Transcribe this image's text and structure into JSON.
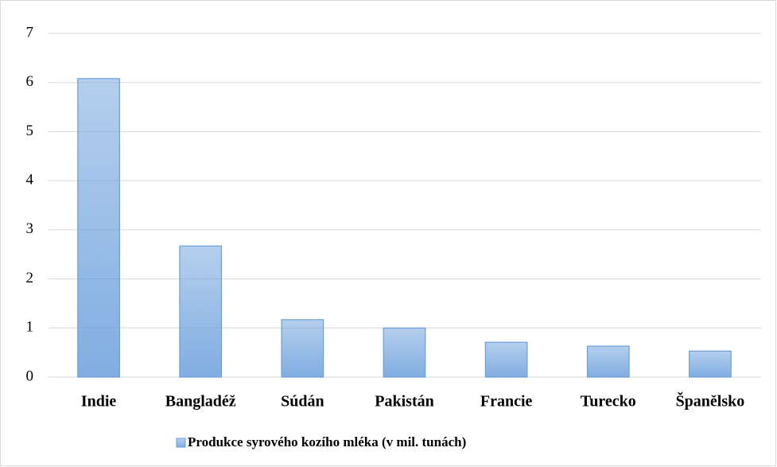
{
  "chart_data": {
    "type": "bar",
    "categories": [
      "Indie",
      "Bangladéž",
      "Súdán",
      "Pakistán",
      "Francie",
      "Turecko",
      "Španělsko"
    ],
    "series": [
      {
        "name": "Produkce syrového kozího mléka (v mil. tunách)",
        "color": "#6a9fdc",
        "values": [
          6.08,
          2.67,
          1.17,
          1.0,
          0.71,
          0.63,
          0.53
        ]
      }
    ],
    "ylim": [
      0,
      7
    ],
    "yticks": [
      0,
      1,
      2,
      3,
      4,
      5,
      6,
      7
    ],
    "grid": true,
    "legend": "bottom"
  }
}
